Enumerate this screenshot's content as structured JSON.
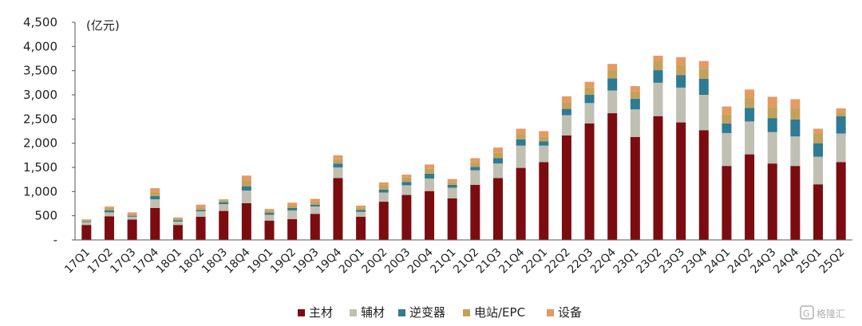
{
  "chart_data": {
    "type": "bar",
    "stacked": true,
    "y_unit_label": "(亿元)",
    "categories": [
      "17Q1",
      "17Q2",
      "17Q3",
      "17Q4",
      "18Q1",
      "18Q2",
      "18Q3",
      "18Q4",
      "19Q1",
      "19Q2",
      "19Q3",
      "19Q4",
      "20Q1",
      "20Q2",
      "20Q3",
      "20Q4",
      "21Q1",
      "21Q2",
      "21Q3",
      "21Q4",
      "22Q1",
      "22Q2",
      "22Q3",
      "22Q4",
      "23Q1",
      "23Q2",
      "23Q3",
      "23Q4",
      "24Q1",
      "24Q2",
      "24Q3",
      "24Q4",
      "25Q1",
      "25Q2"
    ],
    "series": [
      {
        "name": "主材",
        "color": "#7b0c10",
        "values": [
          310,
          490,
          420,
          660,
          310,
          480,
          600,
          760,
          400,
          430,
          540,
          1280,
          480,
          790,
          930,
          1010,
          860,
          1140,
          1280,
          1490,
          1610,
          2160,
          2410,
          2620,
          2130,
          2560,
          2430,
          2270,
          1530,
          1770,
          1580,
          1530,
          1150,
          1610
        ]
      },
      {
        "name": "辅材",
        "color": "#bfbfb2",
        "values": [
          60,
          80,
          60,
          180,
          70,
          110,
          140,
          260,
          120,
          180,
          150,
          220,
          100,
          190,
          200,
          260,
          220,
          300,
          300,
          460,
          340,
          420,
          420,
          470,
          570,
          690,
          720,
          730,
          680,
          680,
          650,
          610,
          570,
          590
        ]
      },
      {
        "name": "逆变器",
        "color": "#2f7a95",
        "values": [
          15,
          40,
          20,
          70,
          25,
          30,
          40,
          90,
          40,
          50,
          40,
          80,
          40,
          60,
          70,
          100,
          60,
          70,
          110,
          130,
          90,
          130,
          170,
          250,
          220,
          260,
          260,
          330,
          200,
          280,
          290,
          350,
          280,
          360
        ]
      },
      {
        "name": "电站/EPC",
        "color": "#c3a15a",
        "values": [
          20,
          50,
          40,
          80,
          30,
          40,
          40,
          110,
          40,
          50,
          60,
          90,
          40,
          90,
          90,
          110,
          60,
          100,
          110,
          110,
          100,
          140,
          150,
          170,
          150,
          190,
          200,
          210,
          180,
          210,
          230,
          240,
          200,
          70
        ]
      },
      {
        "name": "设备",
        "color": "#e39a63",
        "values": [
          20,
          30,
          30,
          80,
          30,
          70,
          20,
          110,
          40,
          60,
          60,
          80,
          50,
          60,
          60,
          80,
          60,
          80,
          110,
          110,
          110,
          120,
          120,
          130,
          110,
          110,
          170,
          160,
          170,
          170,
          210,
          180,
          100,
          90
        ]
      }
    ],
    "ylim": [
      0,
      4500
    ],
    "yticks": [
      0,
      500,
      1000,
      1500,
      2000,
      2500,
      3000,
      3500,
      4000,
      4500
    ],
    "ytick_labels": [
      "-",
      "500",
      "1,000",
      "1,500",
      "2,000",
      "2,500",
      "3,000",
      "3,500",
      "4,000",
      "4,500"
    ],
    "legend_position": "bottom-center",
    "grid": false
  },
  "watermark": {
    "text": "格隆汇",
    "icon": "glh-logo-icon"
  }
}
